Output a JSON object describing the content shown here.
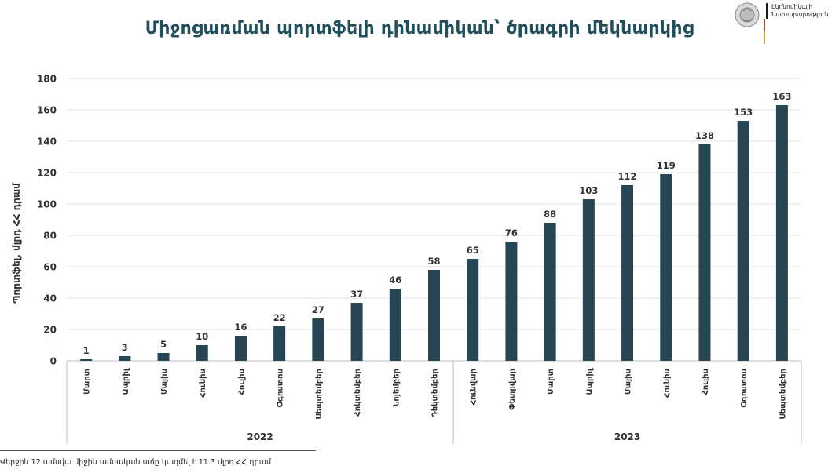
{
  "title": "Միջոցառման պորտֆելի դինամիկան՝ ծրագրի մեկնարկից",
  "ministry": {
    "line1": "Էկոնոմիկայի",
    "line2": "Նախարարություն",
    "logo_icon": "armenia-coat-of-arms-icon"
  },
  "footnote": "Վերջին 12 ամսվա միջին ամսական աճը կազմել է 11.3 մլրդ ՀՀ դրամ",
  "colors": {
    "bar": "#264653",
    "grid": "#e3e3e3",
    "text": "#333333"
  },
  "chart_data": {
    "type": "bar",
    "title": "Միջոցառման պորտֆելի դինամիկան՝ ծրագրի մեկնարկից",
    "ylabel": "Պորտֆել, մլրդ ՀՀ դրամ",
    "xlabel": "",
    "ylim": [
      0,
      180
    ],
    "yticks": [
      0,
      20,
      40,
      60,
      80,
      100,
      120,
      140,
      160,
      180
    ],
    "grid": true,
    "categories": [
      "Մարտ",
      "Ապրիլ",
      "Մայիս",
      "Հունիս",
      "Հուլիս",
      "Օգոստոս",
      "Սեպտեմբեր",
      "Հոկտեմբեր",
      "Նոյեմբեր",
      "Դեկտեմբեր",
      "Հունվար",
      "Փետրվար",
      "Մարտ",
      "Ապրիլ",
      "Մայիս",
      "Հունիս",
      "Հուլիս",
      "Օգոստոս",
      "Սեպտեմբեր"
    ],
    "values": [
      1,
      3,
      5,
      10,
      16,
      22,
      27,
      37,
      46,
      58,
      65,
      76,
      88,
      103,
      112,
      119,
      138,
      153,
      163
    ],
    "groups": [
      {
        "label": "2022",
        "count": 10
      },
      {
        "label": "2023",
        "count": 9
      }
    ]
  }
}
